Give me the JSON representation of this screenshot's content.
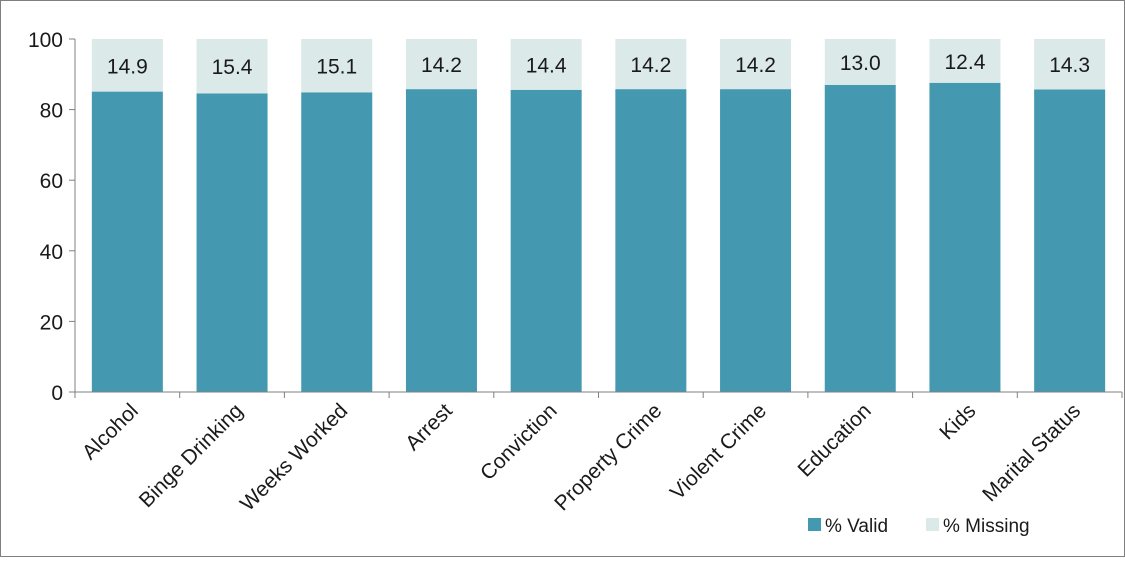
{
  "chart_data": {
    "type": "bar",
    "stacked": true,
    "categories": [
      "Alcohol",
      "Binge Drinking",
      "Weeks Worked",
      "Arrest",
      "Conviction",
      "Property Crime",
      "Violent Crime",
      "Education",
      "Kids",
      "Marital Status"
    ],
    "series": [
      {
        "name": "% Valid",
        "color": "#4499b0",
        "values": [
          85.1,
          84.6,
          84.9,
          85.8,
          85.6,
          85.8,
          85.8,
          87.0,
          87.6,
          85.7
        ]
      },
      {
        "name": "% Missing",
        "color": "#dbe9e9",
        "values": [
          14.9,
          15.4,
          15.1,
          14.2,
          14.4,
          14.2,
          14.2,
          13.0,
          12.4,
          14.3
        ],
        "data_labels": [
          "14.9",
          "15.4",
          "15.1",
          "14.2",
          "14.4",
          "14.2",
          "14.2",
          "13.0",
          "12.4",
          "14.3"
        ]
      }
    ],
    "ylim": [
      0,
      100
    ],
    "yticks": [
      "0",
      "20",
      "40",
      "60",
      "80",
      "100"
    ],
    "grid": false,
    "legend_position": "bottom-right",
    "title": "",
    "xlabel": "",
    "ylabel": ""
  }
}
